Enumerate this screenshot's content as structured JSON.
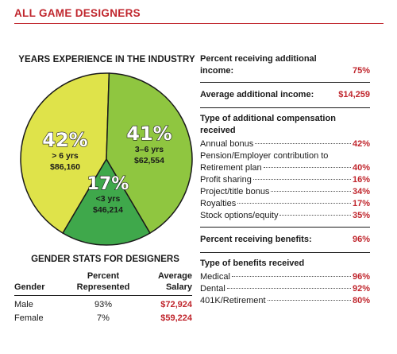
{
  "title": "ALL GAME DESIGNERS",
  "chart_data": {
    "type": "pie",
    "title": "YEARS EXPERIENCE IN THE INDUSTRY",
    "slices": [
      {
        "label": "> 6 yrs",
        "value": 42,
        "pct": "42%",
        "salary": "$86,160",
        "color": "#dfe34a"
      },
      {
        "label": "3–6 yrs",
        "value": 41,
        "pct": "41%",
        "salary": "$62,554",
        "color": "#8fc640"
      },
      {
        "label": "<3 yrs",
        "value": 17,
        "pct": "17%",
        "salary": "$46,214",
        "color": "#3fa84b"
      }
    ]
  },
  "gender": {
    "title": "GENDER STATS FOR DESIGNERS",
    "headers": [
      "Gender",
      "Percent Represented",
      "Average Salary"
    ],
    "rows": [
      {
        "gender": "Male",
        "percent": "93%",
        "salary": "$72,924"
      },
      {
        "gender": "Female",
        "percent": "7%",
        "salary": "$59,224"
      }
    ]
  },
  "additional_income": {
    "label": "Percent receiving additional income:",
    "value": "75%"
  },
  "average_additional": {
    "label": "Average additional income:",
    "value": "$14,259"
  },
  "compensation": {
    "heading": "Type of additional compensation received",
    "pension_line1": "Pension/Employer contribution to",
    "items": [
      {
        "label": "Annual bonus",
        "value": "42%"
      },
      {
        "label": "Retirement plan",
        "value": "40%"
      },
      {
        "label": "Profit sharing",
        "value": "16%"
      },
      {
        "label": "Project/title bonus",
        "value": "34%"
      },
      {
        "label": "Royalties",
        "value": "17%"
      },
      {
        "label": "Stock options/equity",
        "value": "35%"
      }
    ]
  },
  "benefits_pct": {
    "label": "Percent receiving benefits:",
    "value": "96%"
  },
  "benefits": {
    "heading": "Type of benefits received",
    "items": [
      {
        "label": "Medical",
        "value": "96%"
      },
      {
        "label": "Dental",
        "value": "92%"
      },
      {
        "label": "401K/Retirement",
        "value": "80%"
      }
    ]
  },
  "colors": {
    "accent": "#c0262d"
  }
}
